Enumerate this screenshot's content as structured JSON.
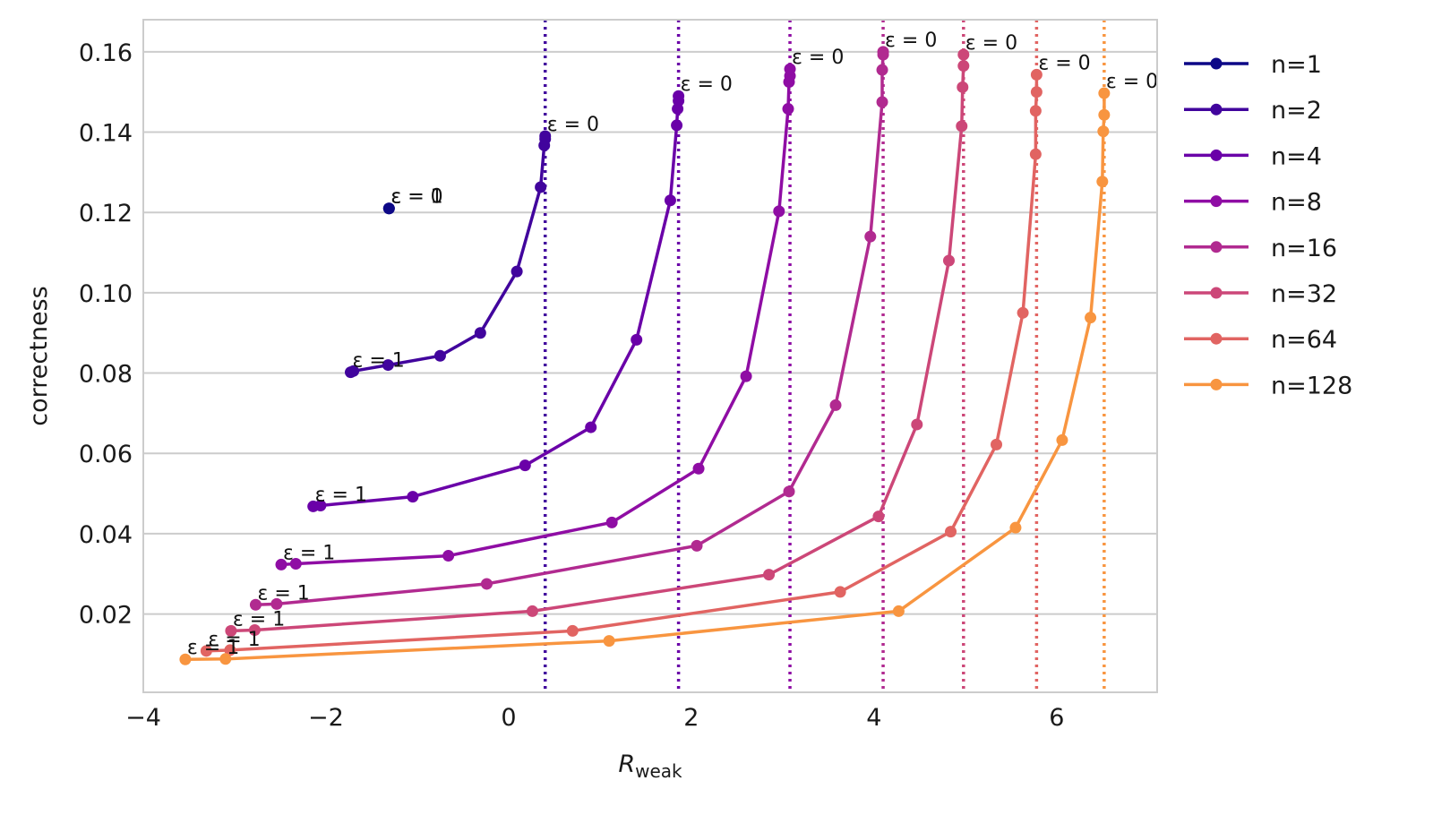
{
  "chart_data": {
    "type": "line",
    "title": "",
    "xlabel": "R",
    "xlabel_sub": "weak",
    "ylabel": "correctness",
    "xlim": [
      -4,
      7.1
    ],
    "ylim": [
      0.0005,
      0.168
    ],
    "xticks": [
      -4,
      -2,
      0,
      2,
      4,
      6
    ],
    "xtick_labels": [
      "−4",
      "−2",
      "0",
      "2",
      "4",
      "6"
    ],
    "yticks": [
      0.02,
      0.04,
      0.06,
      0.08,
      0.1,
      0.12,
      0.14,
      0.16
    ],
    "ytick_labels": [
      "0.02",
      "0.04",
      "0.06",
      "0.08",
      "0.10",
      "0.12",
      "0.14",
      "0.16"
    ],
    "grid": "horizontal",
    "legend_position": "outside-right",
    "anno_start": "ε = 1",
    "anno_end": "ε = 0",
    "series": [
      {
        "name": "n=1",
        "color": "#0d0887",
        "vline": null,
        "x": [
          -1.31,
          -1.31
        ],
        "y": [
          0.121,
          0.121
        ]
      },
      {
        "name": "n=2",
        "color": "#41049d",
        "vline": 0.4,
        "x": [
          -1.73,
          -1.7,
          -1.32,
          -0.75,
          -0.31,
          0.09,
          0.35,
          0.39,
          0.4,
          0.4
        ],
        "y": [
          0.0802,
          0.0805,
          0.082,
          0.0843,
          0.09,
          0.1053,
          0.1263,
          0.1367,
          0.1383,
          0.139
        ]
      },
      {
        "name": "n=4",
        "color": "#6a00a8",
        "vline": 1.86,
        "x": [
          -2.14,
          -2.06,
          -1.05,
          0.18,
          0.9,
          1.4,
          1.77,
          1.84,
          1.85,
          1.86,
          1.86
        ],
        "y": [
          0.0468,
          0.047,
          0.0492,
          0.057,
          0.0665,
          0.0883,
          0.123,
          0.1417,
          0.1458,
          0.1478,
          0.149
        ]
      },
      {
        "name": "n=8",
        "color": "#8f0da4",
        "vline": 3.08,
        "x": [
          -2.49,
          -2.33,
          -0.66,
          1.13,
          2.08,
          2.6,
          2.96,
          3.06,
          3.07,
          3.08,
          3.08
        ],
        "y": [
          0.0323,
          0.0325,
          0.0345,
          0.0428,
          0.0562,
          0.0792,
          0.1203,
          0.1458,
          0.1525,
          0.154,
          0.1557
        ]
      },
      {
        "name": "n=16",
        "color": "#b12a90",
        "vline": 4.1,
        "x": [
          -2.77,
          -2.54,
          -0.24,
          2.06,
          3.07,
          3.58,
          3.96,
          4.09,
          4.09,
          4.1,
          4.1
        ],
        "y": [
          0.0223,
          0.0225,
          0.0275,
          0.037,
          0.0505,
          0.072,
          0.114,
          0.1475,
          0.1555,
          0.1593,
          0.16
        ]
      },
      {
        "name": "n=32",
        "color": "#cc4778",
        "vline": 4.98,
        "x": [
          -3.04,
          -2.78,
          0.26,
          2.85,
          4.05,
          4.47,
          4.82,
          4.96,
          4.97,
          4.98,
          4.98
        ],
        "y": [
          0.0158,
          0.016,
          0.0207,
          0.0298,
          0.0443,
          0.0672,
          0.108,
          0.1415,
          0.1512,
          0.1565,
          0.1593
        ]
      },
      {
        "name": "n=64",
        "color": "#e16462",
        "vline": 5.78,
        "x": [
          -3.31,
          -3.05,
          0.7,
          3.63,
          4.84,
          5.34,
          5.63,
          5.77,
          5.77,
          5.78,
          5.78
        ],
        "y": [
          0.0108,
          0.011,
          0.0158,
          0.0255,
          0.0405,
          0.0622,
          0.095,
          0.1345,
          0.1453,
          0.15,
          0.1543
        ]
      },
      {
        "name": "n=128",
        "color": "#f89540",
        "vline": 6.52,
        "x": [
          -3.54,
          -3.1,
          1.1,
          4.27,
          5.55,
          6.06,
          6.37,
          6.5,
          6.51,
          6.52,
          6.52
        ],
        "y": [
          0.0087,
          0.0088,
          0.0133,
          0.0207,
          0.0415,
          0.0633,
          0.0938,
          0.1277,
          0.1402,
          0.1443,
          0.1497
        ]
      }
    ]
  },
  "colors": {
    "n=1": "#0d0887",
    "n=2": "#41049d",
    "n=4": "#6a00a8",
    "n=8": "#8f0da4",
    "n=16": "#b12a90",
    "n=32": "#cc4778",
    "n=64": "#e16462",
    "n=128": "#f89540",
    "grid": "#cccccc",
    "frame": "#cccccc"
  }
}
